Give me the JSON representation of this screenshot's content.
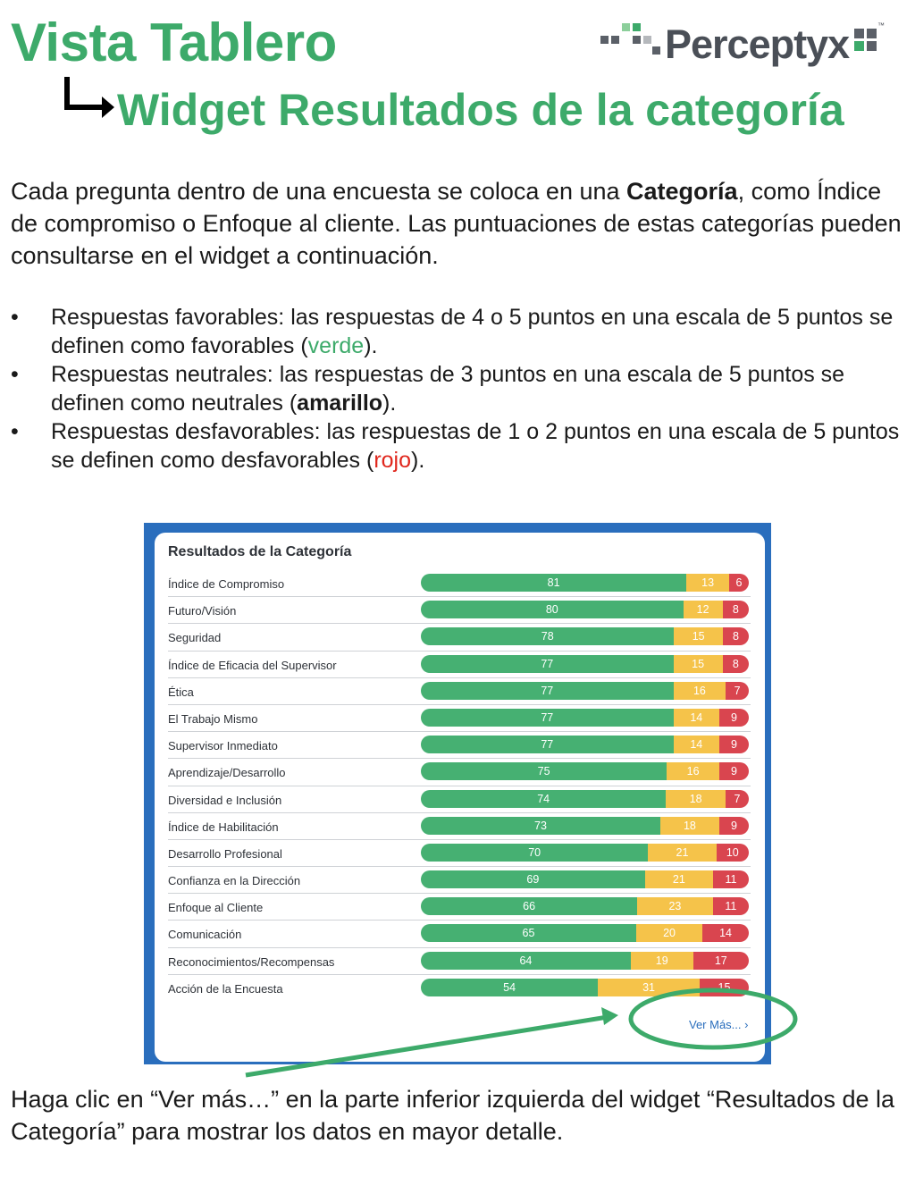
{
  "header": {
    "title": "Vista Tablero",
    "subtitle": "Widget Resultados de la categoría",
    "logo_text": "Perceptyx",
    "logo_tm": "™"
  },
  "intro": {
    "p1": "Cada pregunta dentro de una encuesta se coloca en una ",
    "bold": "Categoría",
    "p2": ", como Índice de compromiso o Enfoque al cliente. Las puntuaciones de estas categorías pueden consultarse en el widget a continuación."
  },
  "bullets": [
    {
      "dot": "•",
      "pre": "Respuestas favorables: las respuestas de 4 o 5 puntos en una escala de 5 puntos se definen como favorables (",
      "hl": "verde",
      "post": ")."
    },
    {
      "dot": "•",
      "pre": "Respuestas neutrales: las respuestas de 3 puntos en una escala de 5 puntos se definen como neutrales (",
      "hl": "amarillo",
      "post": ")."
    },
    {
      "dot": "•",
      "pre": "Respuestas desfavorables: las respuestas de 1 o 2 puntos en una escala de 5 puntos se definen como desfavorables (",
      "hl": "rojo",
      "post": ")."
    }
  ],
  "widget": {
    "title": "Resultados de la Categoría",
    "ver_mas": "Ver Más... ›",
    "colors": {
      "favorable": "#46b072",
      "neutral": "#f5c34a",
      "unfavorable": "#d9454f"
    },
    "rows": [
      {
        "label": "Índice de Compromiso",
        "fav": 81,
        "neu": 13,
        "unf": 6
      },
      {
        "label": "Futuro/Visión",
        "fav": 80,
        "neu": 12,
        "unf": 8
      },
      {
        "label": "Seguridad",
        "fav": 78,
        "neu": 15,
        "unf": 8
      },
      {
        "label": "Índice de Eficacia del Supervisor",
        "fav": 77,
        "neu": 15,
        "unf": 8
      },
      {
        "label": "Ética",
        "fav": 77,
        "neu": 16,
        "unf": 7
      },
      {
        "label": "El Trabajo Mismo",
        "fav": 77,
        "neu": 14,
        "unf": 9
      },
      {
        "label": "Supervisor Inmediato",
        "fav": 77,
        "neu": 14,
        "unf": 9
      },
      {
        "label": "Aprendizaje/Desarrollo",
        "fav": 75,
        "neu": 16,
        "unf": 9
      },
      {
        "label": "Diversidad e Inclusión",
        "fav": 74,
        "neu": 18,
        "unf": 7
      },
      {
        "label": "Índice de Habilitación",
        "fav": 73,
        "neu": 18,
        "unf": 9
      },
      {
        "label": "Desarrollo Profesional",
        "fav": 70,
        "neu": 21,
        "unf": 10
      },
      {
        "label": "Confianza en la Dirección",
        "fav": 69,
        "neu": 21,
        "unf": 11
      },
      {
        "label": "Enfoque al Cliente",
        "fav": 66,
        "neu": 23,
        "unf": 11
      },
      {
        "label": "Comunicación",
        "fav": 65,
        "neu": 20,
        "unf": 14
      },
      {
        "label": "Reconocimientos/Recompensas",
        "fav": 64,
        "neu": 19,
        "unf": 17
      },
      {
        "label": "Acción de la Encuesta",
        "fav": 54,
        "neu": 31,
        "unf": 15
      }
    ]
  },
  "footer": {
    "text": "Haga clic en “Ver más…” en la parte inferior izquierda del widget “Resultados de la Categoría” para mostrar los datos en mayor detalle."
  }
}
